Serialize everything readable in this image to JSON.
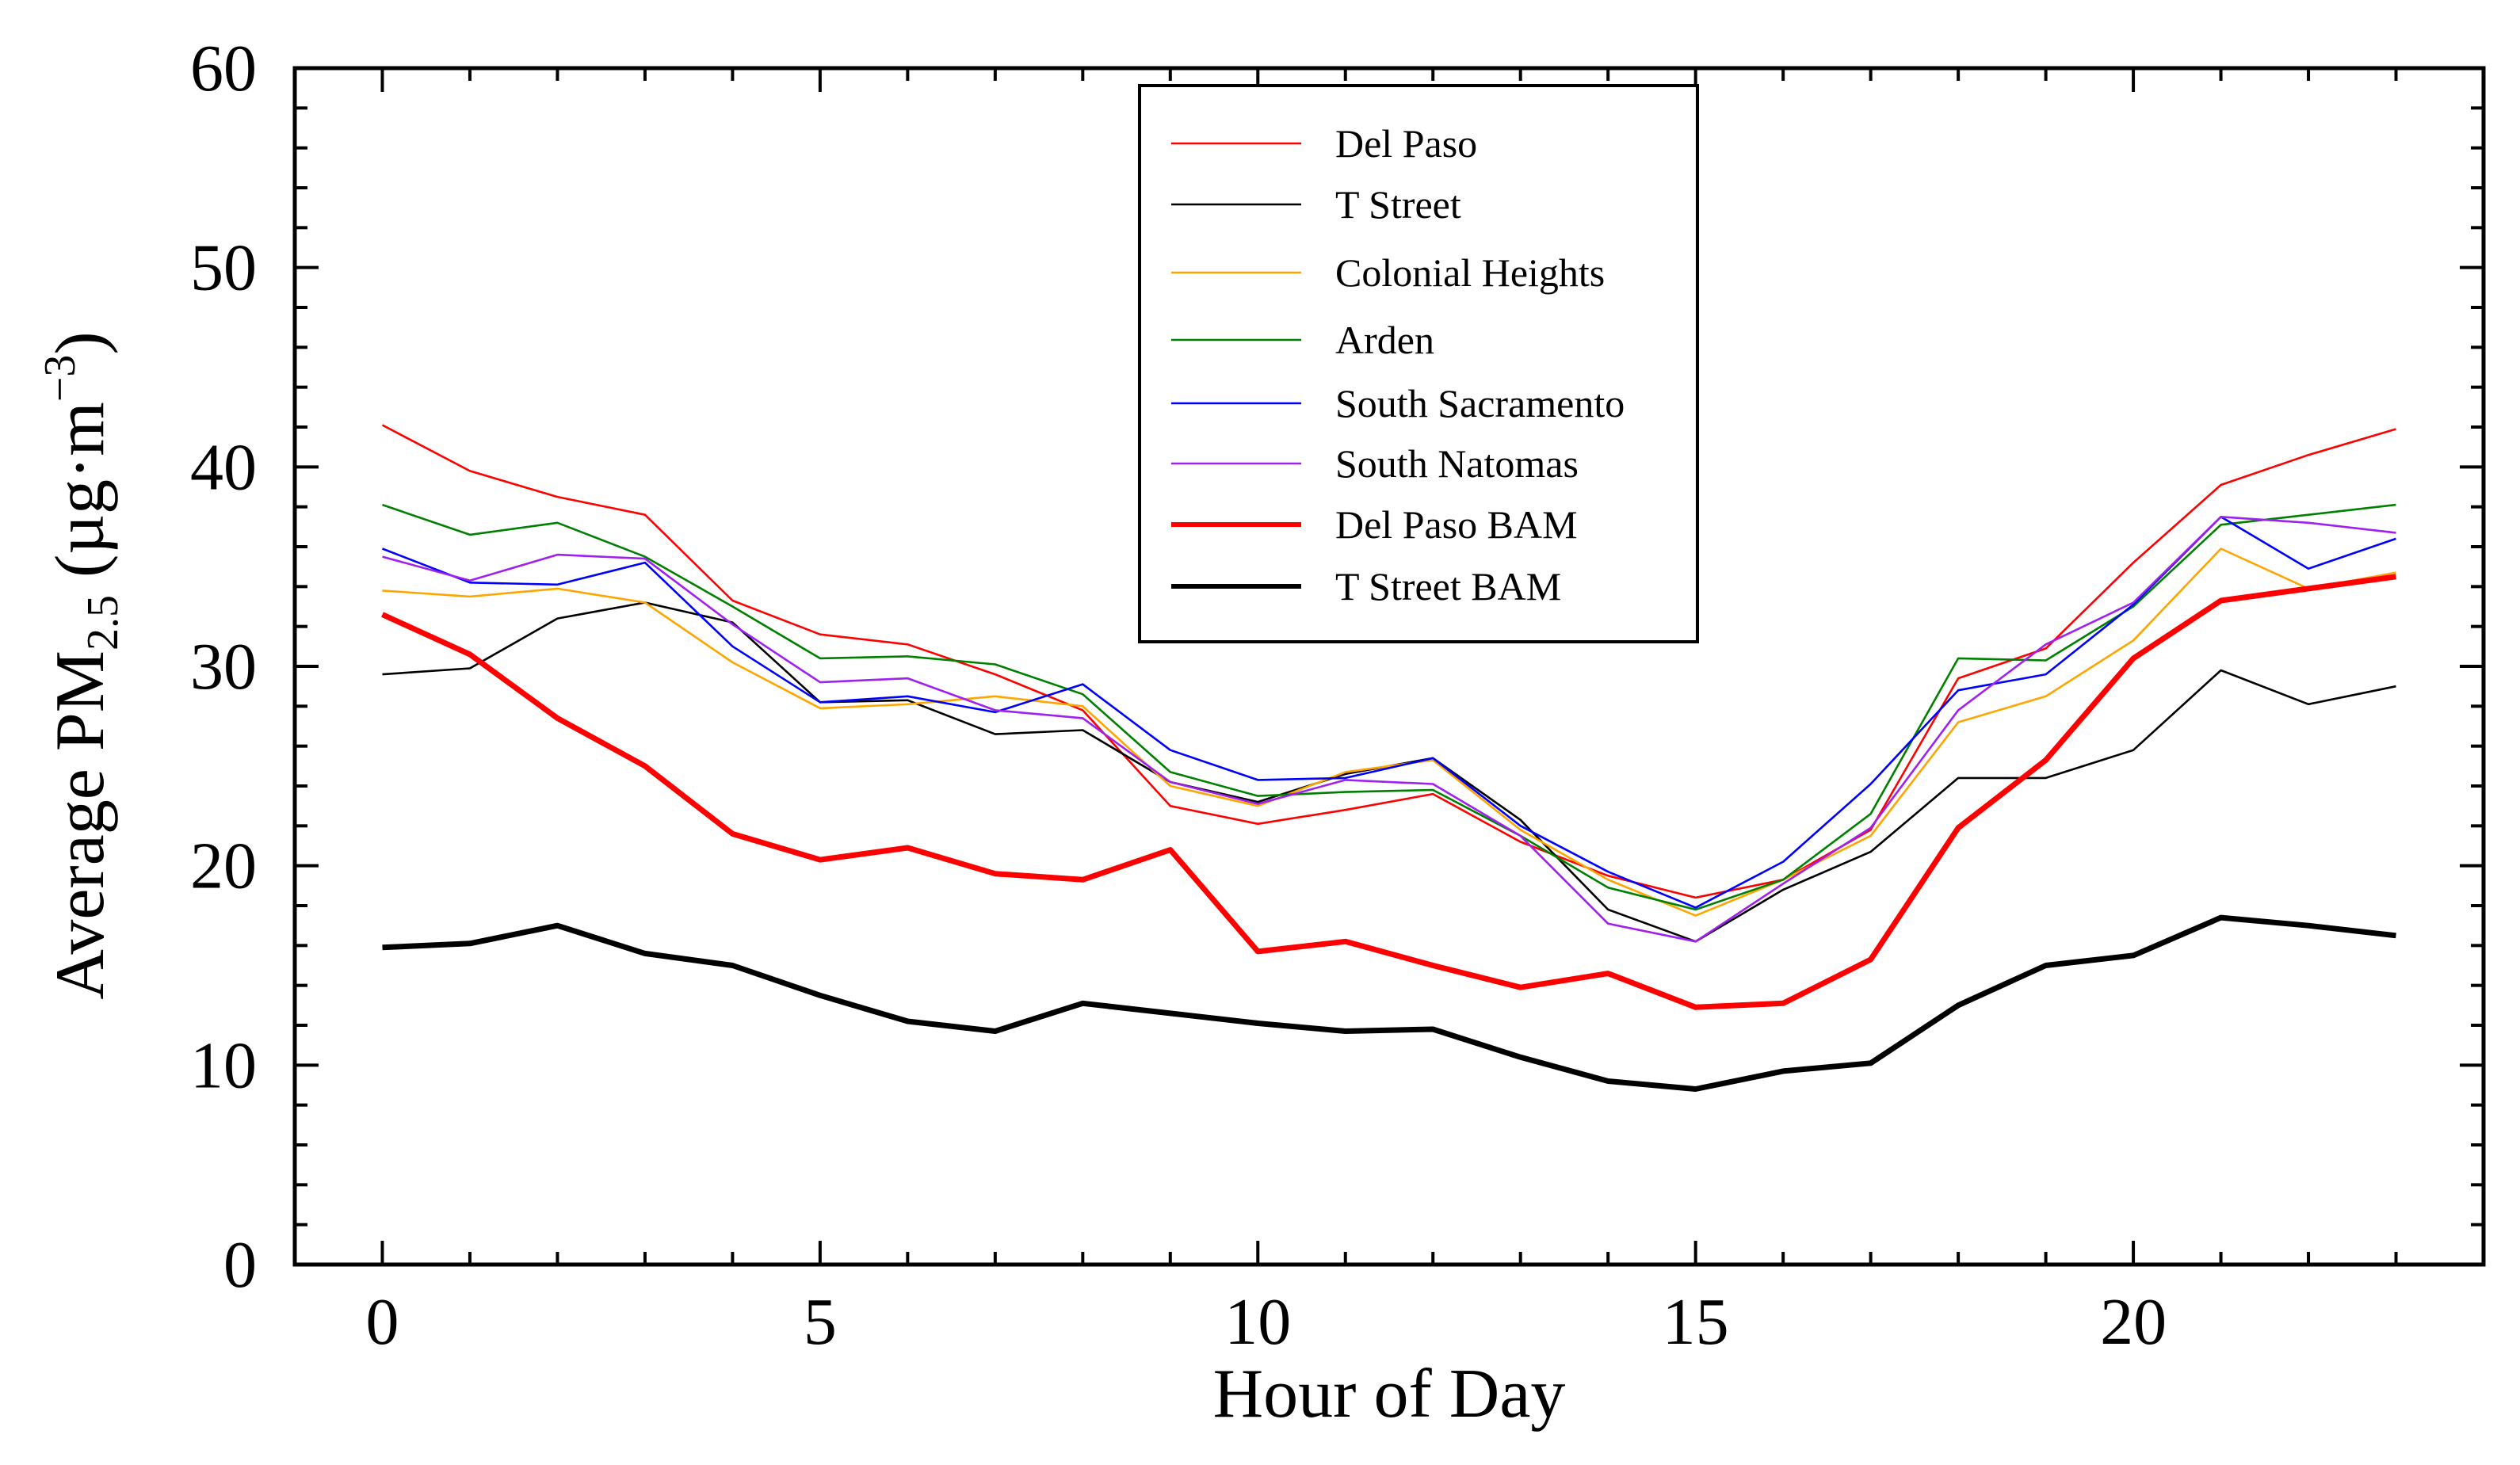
{
  "chart_data": {
    "type": "line",
    "title": "",
    "xlabel": "Hour of Day",
    "ylabel": {
      "prefix": "Average PM",
      "subscript": "2.5",
      "units_open": " (µg·m",
      "units_sup": "−3",
      "units_close": ")"
    },
    "xlim": [
      -1,
      24
    ],
    "ylim": [
      0,
      60
    ],
    "x_ticks": [
      0,
      5,
      10,
      15,
      20
    ],
    "y_ticks": [
      0,
      10,
      20,
      30,
      40,
      50,
      60
    ],
    "x_tick_labels": [
      "0",
      "5",
      "10",
      "15",
      "20"
    ],
    "y_tick_labels": [
      "0",
      "10",
      "20",
      "30",
      "40",
      "50",
      "60"
    ],
    "legend_position": "top-center",
    "x": [
      0,
      1,
      2,
      3,
      4,
      5,
      6,
      7,
      8,
      9,
      10,
      11,
      12,
      13,
      14,
      15,
      16,
      17,
      18,
      19,
      20,
      21,
      22,
      23
    ],
    "series": [
      {
        "name": "Del Paso",
        "color": "#ff0000",
        "style": "thin",
        "values": [
          42.1,
          39.8,
          38.5,
          37.6,
          33.3,
          31.6,
          31.1,
          29.6,
          27.8,
          23.0,
          22.1,
          22.8,
          23.6,
          21.2,
          19.5,
          18.4,
          19.3,
          21.8,
          29.4,
          30.9,
          35.2,
          39.1,
          40.6,
          41.9
        ]
      },
      {
        "name": "T Street",
        "color": "#000000",
        "style": "thin",
        "values": [
          29.6,
          29.9,
          32.4,
          33.2,
          32.2,
          28.2,
          28.3,
          26.6,
          26.8,
          24.2,
          23.2,
          24.6,
          25.4,
          22.3,
          17.8,
          16.2,
          18.8,
          20.7,
          24.4,
          24.4,
          25.8,
          29.8,
          28.1,
          29.0
        ]
      },
      {
        "name": "Colonial Heights",
        "color": "#ffa500",
        "style": "thin",
        "values": [
          33.8,
          33.5,
          33.9,
          33.2,
          30.2,
          27.9,
          28.1,
          28.5,
          28.0,
          24.0,
          23.0,
          24.7,
          25.3,
          21.8,
          19.3,
          17.5,
          19.3,
          21.5,
          27.2,
          28.5,
          31.3,
          35.9,
          33.9,
          34.7
        ]
      },
      {
        "name": "Arden",
        "color": "#008000",
        "style": "thin",
        "values": [
          38.1,
          36.6,
          37.2,
          35.5,
          33.0,
          30.4,
          30.5,
          30.1,
          28.6,
          24.7,
          23.5,
          23.7,
          23.8,
          21.5,
          18.9,
          17.8,
          19.3,
          22.6,
          30.4,
          30.3,
          33.0,
          37.1,
          37.6,
          38.1
        ]
      },
      {
        "name": "South Sacramento",
        "color": "#0000ff",
        "style": "thin",
        "values": [
          35.9,
          34.2,
          34.1,
          35.2,
          31.0,
          28.2,
          28.5,
          27.7,
          29.1,
          25.8,
          24.3,
          24.4,
          25.4,
          22.0,
          19.7,
          17.9,
          20.2,
          24.1,
          28.8,
          29.6,
          33.1,
          37.5,
          34.9,
          36.4
        ]
      },
      {
        "name": "South Natomas",
        "color": "#a020f0",
        "style": "thin",
        "values": [
          35.5,
          34.3,
          35.6,
          35.4,
          32.1,
          29.2,
          29.4,
          27.8,
          27.4,
          24.2,
          23.1,
          24.3,
          24.1,
          21.5,
          17.1,
          16.2,
          19.1,
          21.9,
          27.8,
          31.1,
          33.2,
          37.5,
          37.2,
          36.7
        ]
      },
      {
        "name": "Del Paso BAM",
        "color": "#ff0000",
        "style": "thick",
        "values": [
          32.6,
          30.6,
          27.4,
          25.0,
          21.6,
          20.3,
          20.9,
          19.6,
          19.3,
          20.8,
          15.7,
          16.2,
          15.0,
          13.9,
          14.6,
          12.9,
          13.1,
          15.3,
          21.9,
          25.3,
          30.4,
          33.3,
          33.9,
          34.5
        ]
      },
      {
        "name": "T Street BAM",
        "color": "#000000",
        "style": "thick",
        "values": [
          15.9,
          16.1,
          17.0,
          15.6,
          15.0,
          13.5,
          12.2,
          11.7,
          13.1,
          12.6,
          12.1,
          11.7,
          11.8,
          10.4,
          9.2,
          8.8,
          9.7,
          10.1,
          13.0,
          15.0,
          15.5,
          17.4,
          17.0,
          16.5
        ]
      }
    ]
  }
}
